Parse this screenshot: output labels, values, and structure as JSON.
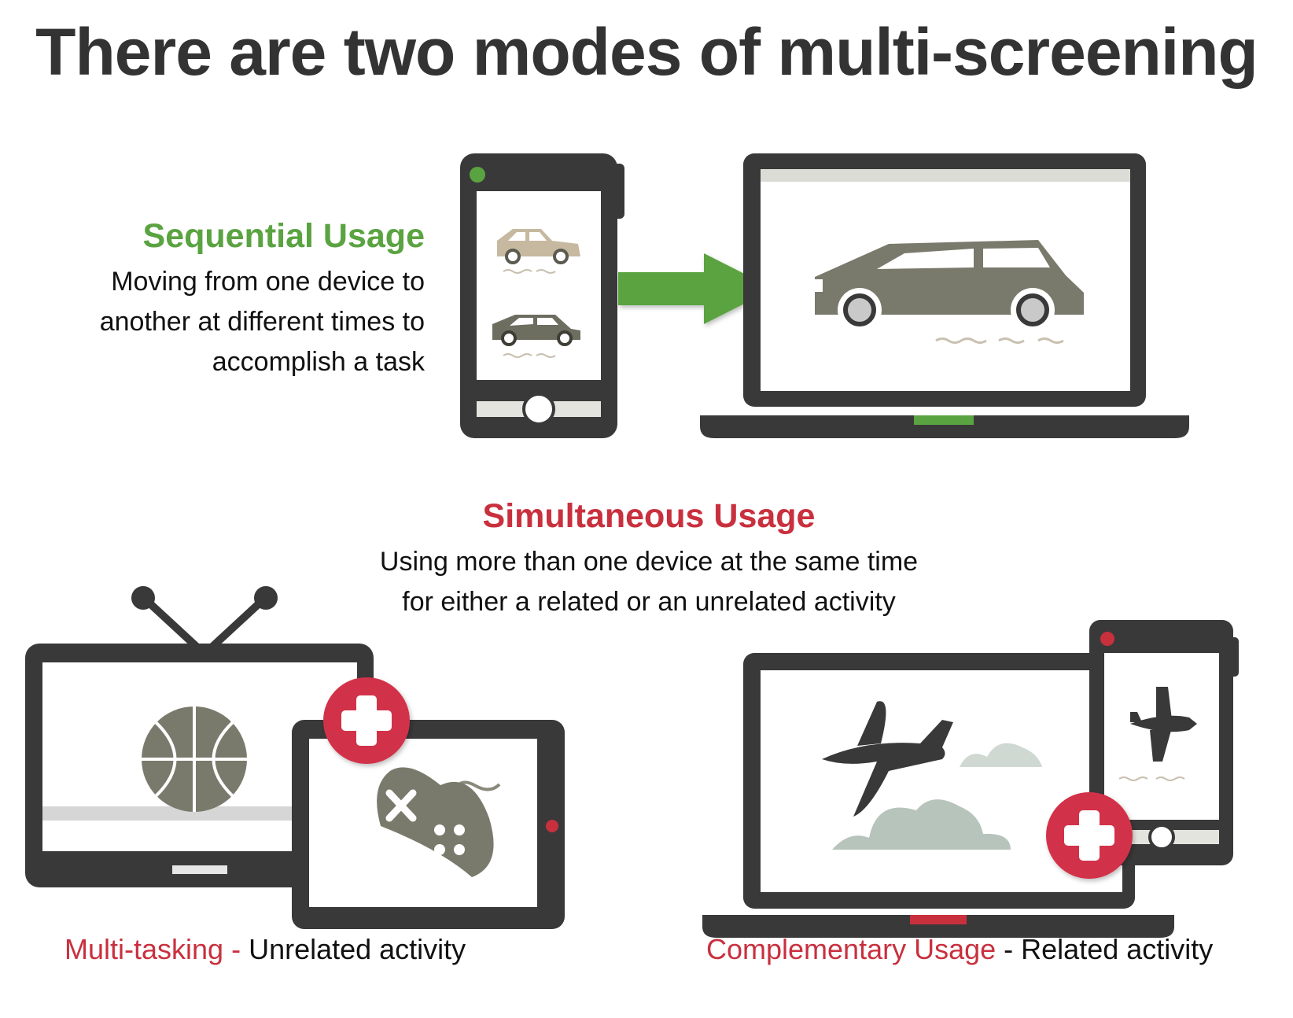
{
  "title": "There are two modes of multi-screening",
  "sequential": {
    "heading": "Sequential Usage",
    "lines": [
      "Moving from one device to",
      "another at different times to",
      "accomplish a task"
    ]
  },
  "simultaneous": {
    "heading": "Simultaneous Usage",
    "lines": [
      "Using more than one device at the same time",
      "for either a related or an unrelated activity"
    ]
  },
  "multitasking": {
    "label": "Multi-tasking -",
    "desc": " Unrelated activity"
  },
  "complementary": {
    "label": "Complementary Usage",
    "desc": " - Related activity"
  },
  "colors": {
    "dark": "#393939",
    "green": "#5aa341",
    "red": "#c9303e",
    "car": "#7a7a6c",
    "beige": "#c6b9a0",
    "cloud": "#b7c4bb"
  },
  "icons": [
    "phone-icon",
    "laptop-icon",
    "arrow-right-icon",
    "tv-icon",
    "tablet-icon",
    "plus-icon",
    "basketball-icon",
    "gamepad-icon",
    "airplane-icon",
    "cloud-icon",
    "car-icon"
  ]
}
